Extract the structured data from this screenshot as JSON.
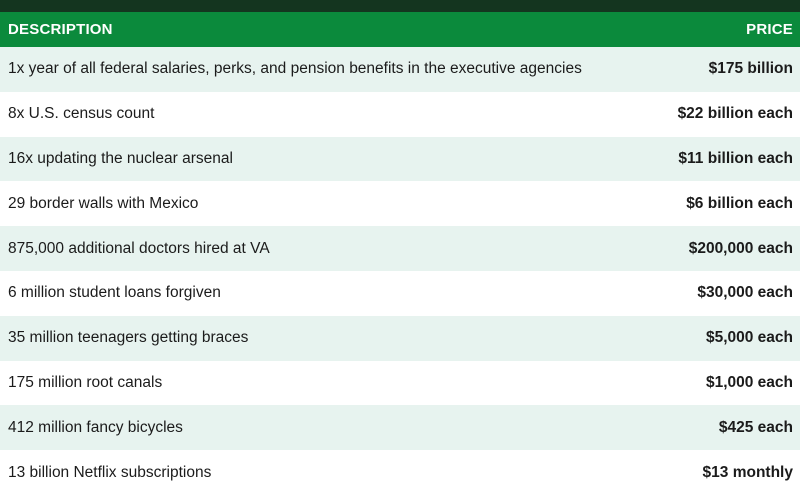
{
  "table": {
    "headers": {
      "description": "DESCRIPTION",
      "price": "PRICE"
    },
    "rows": [
      {
        "description": "1x year of all federal salaries, perks, and pension benefits in the executive agencies",
        "price": "$175 billion"
      },
      {
        "description": "8x U.S. census count",
        "price": "$22 billion each"
      },
      {
        "description": "16x updating the nuclear arsenal",
        "price": "$11 billion each"
      },
      {
        "description": "29 border walls with Mexico",
        "price": "$6 billion each"
      },
      {
        "description": "875,000 additional doctors hired at VA",
        "price": "$200,000 each"
      },
      {
        "description": "6 million student loans forgiven",
        "price": "$30,000 each"
      },
      {
        "description": "35 million teenagers getting braces",
        "price": "$5,000 each"
      },
      {
        "description": "175 million root canals",
        "price": "$1,000 each"
      },
      {
        "description": "412 million fancy bicycles",
        "price": "$425 each"
      },
      {
        "description": "13 billion Netflix subscriptions",
        "price": "$13 monthly"
      }
    ]
  },
  "colors": {
    "top_band": "#14351f",
    "header": "#0b8a3c",
    "row_alt": "#e7f3ef",
    "row": "#ffffff"
  }
}
